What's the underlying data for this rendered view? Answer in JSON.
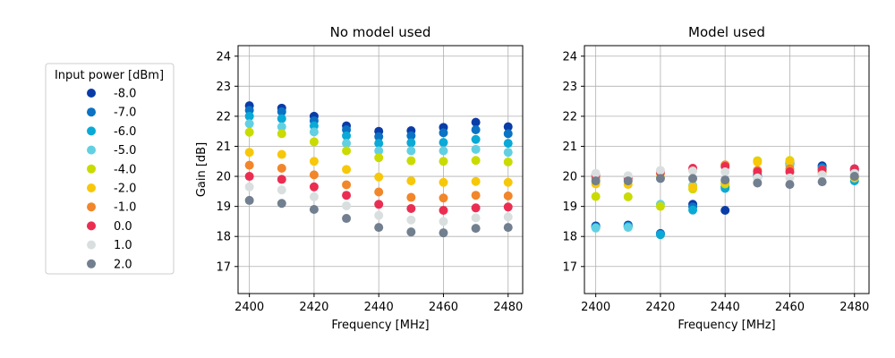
{
  "legend": {
    "title": "Input power [dBm]",
    "placement": "left, outside plots",
    "entries": [
      {
        "label": "-8.0",
        "color": "#0a3ca8"
      },
      {
        "label": "-7.0",
        "color": "#0b72c4"
      },
      {
        "label": "-6.0",
        "color": "#0aa9d6"
      },
      {
        "label": "-5.0",
        "color": "#62d0e2"
      },
      {
        "label": "-4.0",
        "color": "#c9db00"
      },
      {
        "label": "-2.0",
        "color": "#f7c80a"
      },
      {
        "label": "-1.0",
        "color": "#f1862a"
      },
      {
        "label": "0.0",
        "color": "#eb2d52"
      },
      {
        "label": "1.0",
        "color": "#d9dfdf"
      },
      {
        "label": "2.0",
        "color": "#717f8f"
      }
    ]
  },
  "chart_data": [
    {
      "type": "scatter",
      "title": "No model used",
      "xlabel": "Frequency [MHz]",
      "ylabel": "Gain [dB]",
      "xlim": [
        2396.5,
        2484.5
      ],
      "ylim": [
        16.1,
        24.35
      ],
      "xticks": [
        2400,
        2420,
        2440,
        2460,
        2480
      ],
      "yticks": [
        17,
        18,
        19,
        20,
        21,
        22,
        23,
        24
      ],
      "grid": true,
      "x": [
        2400,
        2410,
        2420,
        2430,
        2440,
        2450,
        2460,
        2470,
        2480
      ],
      "series": [
        {
          "name": "-8.0",
          "values": [
            22.35,
            22.27,
            22.0,
            21.68,
            21.5,
            21.52,
            21.63,
            21.8,
            21.65
          ]
        },
        {
          "name": "-7.0",
          "values": [
            22.2,
            22.15,
            21.85,
            21.55,
            21.32,
            21.35,
            21.45,
            21.55,
            21.42
          ]
        },
        {
          "name": "-6.0",
          "values": [
            22.0,
            21.92,
            21.68,
            21.35,
            21.1,
            21.12,
            21.13,
            21.23,
            21.1
          ]
        },
        {
          "name": "-5.0",
          "values": [
            21.75,
            21.65,
            21.48,
            21.1,
            20.85,
            20.85,
            20.85,
            20.9,
            20.8
          ]
        },
        {
          "name": "-4.0",
          "values": [
            21.47,
            21.42,
            21.15,
            20.85,
            20.62,
            20.52,
            20.5,
            20.53,
            20.48
          ]
        },
        {
          "name": "-2.0",
          "values": [
            20.8,
            20.73,
            20.5,
            20.23,
            19.98,
            19.85,
            19.8,
            19.83,
            19.8
          ]
        },
        {
          "name": "-1.0",
          "values": [
            20.37,
            20.27,
            20.05,
            19.72,
            19.48,
            19.3,
            19.28,
            19.37,
            19.35
          ]
        },
        {
          "name": "0.0",
          "values": [
            20.0,
            19.9,
            19.65,
            19.37,
            19.07,
            18.93,
            18.87,
            18.95,
            18.98
          ]
        },
        {
          "name": "1.0",
          "values": [
            19.65,
            19.55,
            19.32,
            19.02,
            18.7,
            18.55,
            18.5,
            18.62,
            18.65
          ]
        },
        {
          "name": "2.0",
          "values": [
            19.2,
            19.1,
            18.9,
            18.6,
            18.3,
            18.15,
            18.12,
            18.27,
            18.3
          ]
        }
      ]
    },
    {
      "type": "scatter",
      "title": "Model used",
      "xlabel": "Frequency [MHz]",
      "ylabel": "",
      "xlim": [
        2396.5,
        2484.5
      ],
      "ylim": [
        16.1,
        24.35
      ],
      "xticks": [
        2400,
        2420,
        2440,
        2460,
        2480
      ],
      "yticks": [
        17,
        18,
        19,
        20,
        21,
        22,
        23,
        24
      ],
      "grid": true,
      "x": [
        2400,
        2410,
        2420,
        2430,
        2440,
        2450,
        2460,
        2470,
        2480
      ],
      "series": [
        {
          "name": "-8.0",
          "values": [
            18.35,
            18.38,
            18.1,
            19.07,
            18.87,
            20.0,
            20.5,
            20.35,
            20.25
          ]
        },
        {
          "name": "-7.0",
          "values": [
            18.32,
            18.35,
            18.08,
            18.98,
            19.65,
            20.05,
            20.45,
            20.3,
            20.2
          ]
        },
        {
          "name": "-6.0",
          "values": [
            18.3,
            18.33,
            18.06,
            18.88,
            19.6,
            20.0,
            20.4,
            20.25,
            19.85
          ]
        },
        {
          "name": "-5.0",
          "values": [
            18.28,
            18.3,
            19.07,
            19.7,
            19.75,
            19.95,
            20.35,
            20.2,
            19.95
          ]
        },
        {
          "name": "-4.0",
          "values": [
            19.33,
            19.32,
            19.0,
            19.58,
            19.75,
            20.52,
            20.53,
            20.15,
            20.0
          ]
        },
        {
          "name": "-2.0",
          "values": [
            19.75,
            19.73,
            19.95,
            19.65,
            19.8,
            20.48,
            20.5,
            20.1,
            19.95
          ]
        },
        {
          "name": "-1.0",
          "values": [
            19.95,
            19.9,
            20.1,
            20.22,
            20.38,
            20.2,
            20.25,
            20.15,
            20.1
          ]
        },
        {
          "name": "0.0",
          "values": [
            20.05,
            19.95,
            20.15,
            20.27,
            20.33,
            20.15,
            20.15,
            20.22,
            20.25
          ]
        },
        {
          "name": "1.0",
          "values": [
            20.1,
            20.02,
            20.2,
            20.18,
            20.15,
            19.95,
            19.95,
            20.05,
            20.1
          ]
        },
        {
          "name": "2.0",
          "values": [
            19.85,
            19.85,
            19.93,
            19.93,
            19.88,
            19.78,
            19.73,
            19.82,
            20.0
          ]
        }
      ]
    }
  ]
}
